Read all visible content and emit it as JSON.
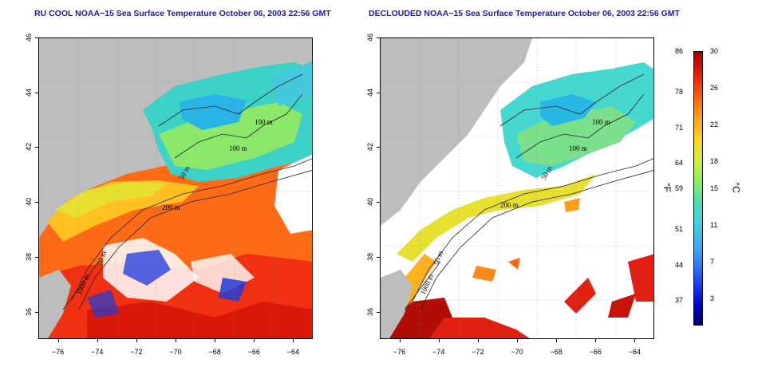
{
  "titles": {
    "left": "RU COOL NOAA−15 Sea Surface Temperature October 06, 2003 22:56 GMT",
    "right": "DECLOUDED NOAA−15 Sea Surface Temperature October 06, 2003 22:56 GMT"
  },
  "axes": {
    "lat_ticks": [
      "46",
      "44",
      "42",
      "40",
      "38",
      "36"
    ],
    "lon_ticks": [
      "−76",
      "−74",
      "−72",
      "−70",
      "−68",
      "−66",
      "−64"
    ],
    "lat_range": [
      35,
      46
    ],
    "lon_range": [
      -77,
      -63
    ]
  },
  "contours": {
    "left": [
      "100 m",
      "100 m",
      "50 m",
      "200 m",
      "50 m",
      "1000 m"
    ],
    "right": [
      "100 m",
      "100 m",
      "50 m",
      "200 m",
      "50 m",
      "1000 m"
    ]
  },
  "colorbar": {
    "fahrenheit_ticks": [
      "86",
      "78",
      "71",
      "64",
      "59",
      "51",
      "44",
      "37"
    ],
    "celsius_ticks": [
      "30",
      "26",
      "22",
      "18",
      "15",
      "11",
      "7",
      "3"
    ],
    "f_unit": "°F",
    "c_unit": "°C",
    "range_c": [
      0,
      30
    ]
  },
  "colors": {
    "land": "#bdbdbd",
    "cloud": "#ffffff",
    "title": "#1a1aa8"
  }
}
